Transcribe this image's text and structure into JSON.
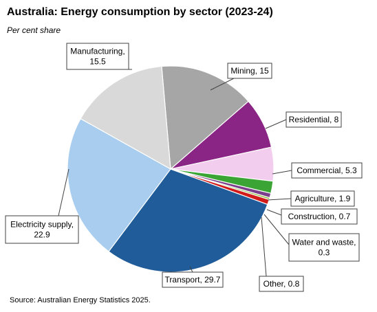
{
  "title": "Australia: Energy consumption by sector (2023-24)",
  "subtitle": "Per cent share",
  "source": "Source: Australian Energy Statistics 2025.",
  "chart_data": {
    "type": "pie",
    "title": "Australia: Energy consumption by sector (2023-24)",
    "subtitle": "Per cent share",
    "legend": "none",
    "slices": [
      {
        "name": "Mining",
        "value": 15,
        "label": [
          "Mining, 15"
        ],
        "color": "#a6a6a6"
      },
      {
        "name": "Residential",
        "value": 8,
        "label": [
          "Residential, 8"
        ],
        "color": "#8b2585"
      },
      {
        "name": "Commercial",
        "value": 5.3,
        "label": [
          "Commercial,  5.3"
        ],
        "color": "#f3cdee"
      },
      {
        "name": "Agriculture",
        "value": 1.9,
        "label": [
          "Agriculture, 1.9"
        ],
        "color": "#3aa535"
      },
      {
        "name": "Construction",
        "value": 0.7,
        "label": [
          "Construction, 0.7"
        ],
        "color": "#7b3f8c"
      },
      {
        "name": "Water and waste",
        "value": 0.3,
        "label": [
          "Water and waste,",
          "0.3"
        ],
        "color": "#8fbc3b"
      },
      {
        "name": "Other",
        "value": 0.8,
        "label": [
          "Other, 0.8"
        ],
        "color": "#d21b1b"
      },
      {
        "name": "Transport",
        "value": 29.7,
        "label": [
          "Transport, 29.7"
        ],
        "color": "#1f5c99"
      },
      {
        "name": "Electricity supply",
        "value": 22.9,
        "label": [
          "Electricity supply,",
          "22.9"
        ],
        "color": "#a9cdee"
      },
      {
        "name": "Manufacturing",
        "value": 15.5,
        "label": [
          "Manufacturing,",
          "15.5"
        ],
        "color": "#d9d9d9"
      }
    ]
  }
}
